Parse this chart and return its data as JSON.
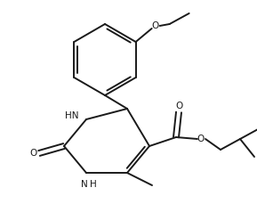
{
  "bg_color": "#ffffff",
  "line_color": "#1a1a1a",
  "line_width": 1.4,
  "figsize": [
    2.89,
    2.29
  ],
  "dpi": 100,
  "xlim": [
    0,
    289
  ],
  "ylim": [
    0,
    229
  ]
}
